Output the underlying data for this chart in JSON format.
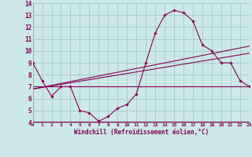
{
  "xlabel": "Windchill (Refroidissement éolien,°C)",
  "xlim": [
    0,
    23
  ],
  "ylim": [
    4,
    14
  ],
  "yticks": [
    4,
    5,
    6,
    7,
    8,
    9,
    10,
    11,
    12,
    13,
    14
  ],
  "xticks": [
    0,
    1,
    2,
    3,
    4,
    5,
    6,
    7,
    8,
    9,
    10,
    11,
    12,
    13,
    14,
    15,
    16,
    17,
    18,
    19,
    20,
    21,
    22,
    23
  ],
  "bg_color": "#cce8e8",
  "grid_color": "#aacece",
  "line_color": "#880055",
  "curve1_x": [
    0,
    1,
    2,
    3,
    4,
    5,
    6,
    7,
    8,
    9,
    10,
    11,
    12,
    13,
    14,
    15,
    16,
    17,
    18,
    19,
    20,
    21,
    22,
    23
  ],
  "curve1_y": [
    9.0,
    7.5,
    6.2,
    7.0,
    7.0,
    5.0,
    4.8,
    4.1,
    4.5,
    5.2,
    5.5,
    6.4,
    9.0,
    11.5,
    13.0,
    13.4,
    13.2,
    12.5,
    10.5,
    10.0,
    9.0,
    9.0,
    7.5,
    7.0
  ],
  "line2_x": [
    0,
    23
  ],
  "line2_y": [
    7.0,
    7.0
  ],
  "line3_x": [
    0,
    23
  ],
  "line3_y": [
    6.8,
    9.8
  ],
  "line4_x": [
    0,
    23
  ],
  "line4_y": [
    6.8,
    10.4
  ]
}
